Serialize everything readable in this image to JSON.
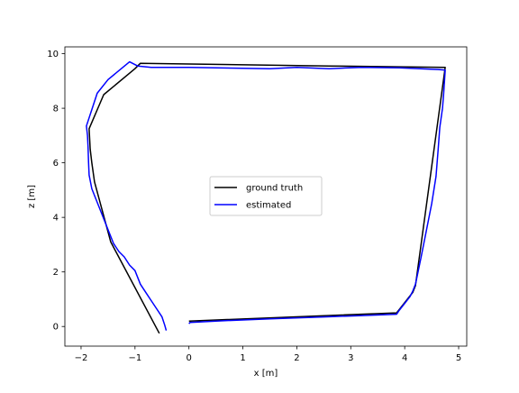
{
  "colors": {
    "ground_truth": "#000000",
    "estimated": "#0000ff"
  },
  "chart_data": {
    "type": "line",
    "title": "",
    "xlabel": "x [m]",
    "ylabel": "z [m]",
    "xlim": [
      -2.3,
      5.15
    ],
    "ylim": [
      -0.72,
      10.25
    ],
    "xticks": [
      -2,
      -1,
      0,
      1,
      2,
      3,
      4,
      5
    ],
    "yticks": [
      0,
      2,
      4,
      6,
      8,
      10
    ],
    "grid": false,
    "legend_position": "center",
    "series": [
      {
        "name": "ground truth",
        "x": [
          0.0,
          3.85,
          3.95,
          4.05,
          4.15,
          4.2,
          4.75,
          2.6,
          -0.9,
          -1.0,
          -1.58,
          -1.85,
          -1.83,
          -1.8,
          -1.75,
          -1.45,
          -0.55
        ],
        "y": [
          0.2,
          0.5,
          0.75,
          1.0,
          1.25,
          1.5,
          9.5,
          9.55,
          9.65,
          9.45,
          8.5,
          7.25,
          6.5,
          6.0,
          5.3,
          3.1,
          -0.25
        ]
      },
      {
        "name": "estimated",
        "x": [
          0.0,
          0.02,
          0.5,
          1.5,
          2.5,
          3.2,
          3.85,
          3.9,
          4.0,
          4.1,
          4.15,
          4.2,
          4.3,
          4.4,
          4.5,
          4.58,
          4.62,
          4.65,
          4.7,
          4.72,
          4.75,
          4.62,
          3.9,
          3.2,
          2.6,
          2.0,
          1.5,
          0.5,
          0.0,
          -0.7,
          -0.95,
          -1.1,
          -1.5,
          -1.7,
          -1.8,
          -1.9,
          -1.88,
          -1.87,
          -1.86,
          -1.85,
          -1.8,
          -1.7,
          -1.6,
          -1.5,
          -1.4,
          -1.3,
          -1.2,
          -1.1,
          -1.0,
          -0.9,
          -0.8,
          -0.7,
          -0.6,
          -0.5,
          -0.45,
          -0.42
        ],
        "y": [
          0.1,
          0.15,
          0.2,
          0.28,
          0.35,
          0.4,
          0.45,
          0.6,
          0.85,
          1.1,
          1.3,
          1.55,
          2.5,
          3.5,
          4.5,
          5.5,
          6.5,
          7.3,
          8.0,
          8.5,
          9.4,
          9.42,
          9.48,
          9.5,
          9.45,
          9.5,
          9.45,
          9.48,
          9.5,
          9.5,
          9.55,
          9.7,
          9.05,
          8.55,
          7.95,
          7.35,
          7.0,
          6.6,
          6.0,
          5.55,
          5.05,
          4.55,
          4.05,
          3.55,
          3.05,
          2.75,
          2.55,
          2.25,
          2.05,
          1.55,
          1.25,
          0.95,
          0.65,
          0.35,
          0.05,
          -0.15
        ]
      }
    ]
  }
}
